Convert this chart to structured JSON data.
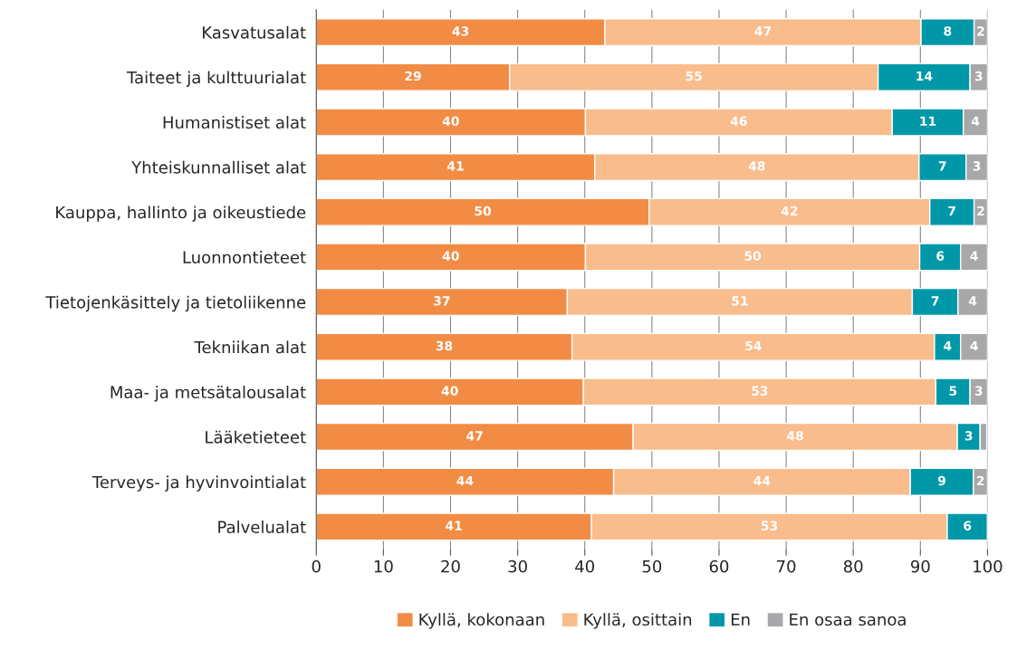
{
  "chart_data": {
    "type": "bar",
    "orientation": "horizontal",
    "stacked": true,
    "categories": [
      "Kasvatusalat",
      "Taiteet ja kulttuurialat",
      "Humanistiset alat",
      "Yhteiskunnalliset alat",
      "Kauppa, hallinto ja oikeustiede",
      "Luonnontieteet",
      "Tietojenkäsittely ja tietoliikenne",
      "Tekniikan alat",
      "Maa- ja metsätalousalat",
      "Lääketieteet",
      "Terveys- ja hyvinvointialat",
      "Palvelualat"
    ],
    "series": [
      {
        "name": "Kyllä, kokonaan",
        "color": "#f28c45",
        "values": [
          43.0,
          28.8,
          40.1,
          41.5,
          49.6,
          40.1,
          37.4,
          38.1,
          39.8,
          47.2,
          44.3,
          41.0
        ],
        "value_labels": [
          "43",
          "29",
          "40",
          "41",
          "50",
          "40",
          "37",
          "38",
          "40",
          "47",
          "44",
          "41"
        ]
      },
      {
        "name": "Kyllä, osittain",
        "color": "#f9bc8c",
        "values": [
          47.1,
          54.9,
          45.7,
          48.3,
          41.8,
          49.8,
          51.4,
          54.0,
          52.5,
          48.3,
          44.2,
          53.0
        ],
        "value_labels": [
          "47",
          "55",
          "46",
          "48",
          "42",
          "50",
          "51",
          "54",
          "53",
          "48",
          "44",
          "53"
        ]
      },
      {
        "name": "En",
        "color": "#0098a8",
        "values": [
          7.9,
          13.7,
          10.6,
          7.0,
          6.6,
          6.1,
          6.8,
          3.9,
          5.1,
          3.4,
          9.4,
          6.0
        ],
        "value_labels": [
          "8",
          "14",
          "11",
          "7",
          "7",
          "6",
          "7",
          "4",
          "5",
          "3",
          "9",
          "6"
        ]
      },
      {
        "name": "En osaa sanoa",
        "color": "#a7a8aa",
        "values": [
          2.0,
          2.6,
          3.6,
          3.2,
          2.0,
          4.0,
          4.4,
          4.0,
          2.6,
          1.0,
          2.1,
          null
        ],
        "value_labels": [
          "2",
          "3",
          "4",
          "3",
          "2",
          "4",
          "4",
          "4",
          "3",
          null,
          "2",
          null
        ]
      }
    ],
    "xlim": [
      0,
      100
    ],
    "xticks": [
      0,
      10,
      20,
      30,
      40,
      50,
      60,
      70,
      80,
      90,
      100
    ],
    "grid": "x",
    "legend": "bottom"
  }
}
